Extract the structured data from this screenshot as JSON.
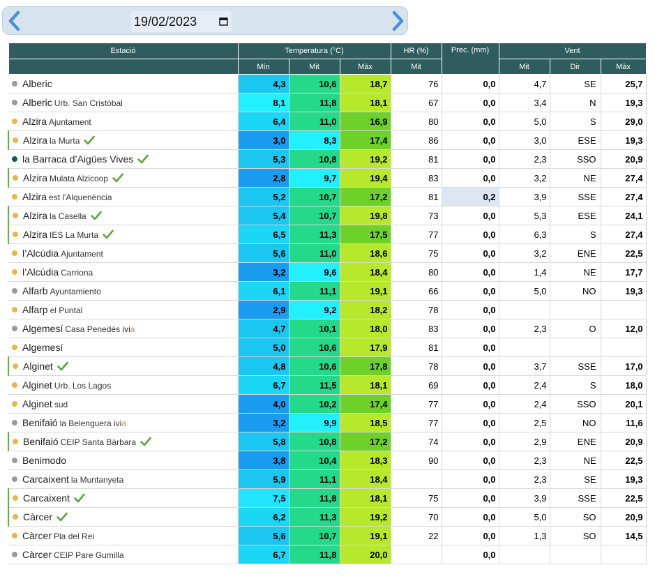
{
  "nav": {
    "date": "19/02/2023"
  },
  "headers": {
    "station": "Estació",
    "temperature": "Temperatura (°C)",
    "humidity": "HR (%)",
    "precip": "Prec. (mm)",
    "wind": "Vent",
    "t_min": "Mín",
    "t_mit": "Mit",
    "t_max": "Màx",
    "hr_mit": "Mit",
    "w_mit": "Mit",
    "w_dir": "Dir",
    "w_max": "Màx"
  },
  "rows": [
    {
      "name": "Alberic",
      "sub": "",
      "dot": "gray",
      "check": false,
      "bar": false,
      "min": "4,3",
      "mit": "10,6",
      "max": "18,7",
      "hr": "76",
      "prec": "0,0",
      "wmit": "4,7",
      "dir": "SE",
      "wmax": "25,7",
      "minc": "#1bc6f0",
      "mitc": "#25d98a",
      "maxc": "#b6e82c"
    },
    {
      "name": "Alberic",
      "sub": "Urb. San Cristóbal",
      "dot": "gray",
      "check": false,
      "bar": false,
      "min": "8,1",
      "mit": "11,8",
      "max": "18,1",
      "hr": "67",
      "prec": "0,0",
      "wmit": "3,4",
      "dir": "N",
      "wmax": "19,3",
      "minc": "#22f0ff",
      "mitc": "#25d98a",
      "maxc": "#b6e82c"
    },
    {
      "name": "Alzira",
      "sub": "Ajuntament",
      "dot": "orange",
      "check": false,
      "bar": false,
      "min": "6,4",
      "mit": "11,0",
      "max": "16,9",
      "hr": "80",
      "prec": "0,0",
      "wmit": "5,0",
      "dir": "S",
      "wmax": "29,0",
      "minc": "#1bd6f5",
      "mitc": "#25d98a",
      "maxc": "#6dd12a"
    },
    {
      "name": "Alzira",
      "sub": "la Murta",
      "dot": "orange",
      "check": true,
      "bar": true,
      "min": "3,0",
      "mit": "8,3",
      "max": "17,4",
      "hr": "86",
      "prec": "0,0",
      "wmit": "3,0",
      "dir": "ESE",
      "wmax": "19,3",
      "minc": "#1a9cf0",
      "mitc": "#22f0ff",
      "maxc": "#6dd12a"
    },
    {
      "name": "la Barraca d’Aigües Vives",
      "sub": "",
      "dot": "teal",
      "check": true,
      "bar": false,
      "min": "5,3",
      "mit": "10,8",
      "max": "19,2",
      "hr": "81",
      "prec": "0,0",
      "wmit": "2,3",
      "dir": "SSO",
      "wmax": "20,9",
      "minc": "#1bc6f0",
      "mitc": "#25d98a",
      "maxc": "#b6e82c"
    },
    {
      "name": "Alzira",
      "sub": "Mulata Alzicoop",
      "dot": "orange",
      "check": true,
      "bar": true,
      "min": "2,8",
      "mit": "9,7",
      "max": "19,4",
      "hr": "83",
      "prec": "0,0",
      "wmit": "3,2",
      "dir": "NE",
      "wmax": "27,4",
      "minc": "#1a9cf0",
      "mitc": "#22f0ff",
      "maxc": "#b6e82c"
    },
    {
      "name": "Alzira",
      "sub": "est l'Alquenència",
      "dot": "orange",
      "check": false,
      "bar": false,
      "min": "5,2",
      "mit": "10,7",
      "max": "17,2",
      "hr": "81",
      "prec": "0,2",
      "wmit": "3,9",
      "dir": "SSE",
      "wmax": "27,4",
      "minc": "#1bc6f0",
      "mitc": "#25d98a",
      "maxc": "#6dd12a",
      "hl": true
    },
    {
      "name": "Alzira",
      "sub": "la Casella",
      "dot": "orange",
      "check": true,
      "bar": true,
      "min": "5,4",
      "mit": "10,7",
      "max": "19,8",
      "hr": "73",
      "prec": "0,0",
      "wmit": "5,3",
      "dir": "ESE",
      "wmax": "24,1",
      "minc": "#1bc6f0",
      "mitc": "#25d98a",
      "maxc": "#b6e82c"
    },
    {
      "name": "Alzira",
      "sub": "IES La Murta",
      "dot": "orange",
      "check": true,
      "bar": true,
      "min": "6,5",
      "mit": "11,3",
      "max": "17,5",
      "hr": "77",
      "prec": "0,0",
      "wmit": "6,3",
      "dir": "S",
      "wmax": "27,4",
      "minc": "#1bd6f5",
      "mitc": "#25d98a",
      "maxc": "#6dd12a"
    },
    {
      "name": "l’Alcúdia",
      "sub": "Ajuntament",
      "dot": "orange",
      "check": false,
      "bar": false,
      "min": "5,6",
      "mit": "11,0",
      "max": "18,6",
      "hr": "75",
      "prec": "0,0",
      "wmit": "3,2",
      "dir": "ENE",
      "wmax": "22,5",
      "minc": "#1bc6f0",
      "mitc": "#25d98a",
      "maxc": "#b6e82c"
    },
    {
      "name": "l’Alcúdia",
      "sub": "Carriona",
      "dot": "orange",
      "check": false,
      "bar": false,
      "min": "3,2",
      "mit": "9,6",
      "max": "18,4",
      "hr": "80",
      "prec": "0,0",
      "wmit": "1,4",
      "dir": "NE",
      "wmax": "17,7",
      "minc": "#1a9cf0",
      "mitc": "#22f0ff",
      "maxc": "#b6e82c"
    },
    {
      "name": "Alfarb",
      "sub": "Ayuntamiento",
      "dot": "gray",
      "check": false,
      "bar": false,
      "min": "6,1",
      "mit": "11,1",
      "max": "19,1",
      "hr": "66",
      "prec": "0,0",
      "wmit": "5,0",
      "dir": "NO",
      "wmax": "19,3",
      "minc": "#1bd6f5",
      "mitc": "#25d98a",
      "maxc": "#b6e82c"
    },
    {
      "name": "Alfarp",
      "sub": "el Puntal",
      "dot": "orange",
      "check": false,
      "bar": false,
      "min": "2,9",
      "mit": "9,2",
      "max": "18,2",
      "hr": "78",
      "prec": "0,0",
      "wmit": "",
      "dir": "",
      "wmax": "",
      "minc": "#1a9cf0",
      "mitc": "#22f0ff",
      "maxc": "#b6e82c"
    },
    {
      "name": "Algemesí",
      "sub": "Casa Penedés",
      "dot": "gray",
      "check": false,
      "bar": false,
      "ivi": true,
      "min": "4,7",
      "mit": "10,1",
      "max": "18,0",
      "hr": "83",
      "prec": "0,0",
      "wmit": "2,3",
      "dir": "O",
      "wmax": "12,0",
      "minc": "#1bc6f0",
      "mitc": "#25d98a",
      "maxc": "#b6e82c"
    },
    {
      "name": "Algemesí",
      "sub": "",
      "dot": "orange",
      "check": false,
      "bar": false,
      "min": "5,0",
      "mit": "10,6",
      "max": "17,9",
      "hr": "81",
      "prec": "0,0",
      "wmit": "",
      "dir": "",
      "wmax": "",
      "minc": "#1bc6f0",
      "mitc": "#25d98a",
      "maxc": "#b6e82c"
    },
    {
      "name": "Alginet",
      "sub": "",
      "dot": "orange",
      "check": true,
      "bar": true,
      "min": "4,8",
      "mit": "10,6",
      "max": "17,8",
      "hr": "78",
      "prec": "0,0",
      "wmit": "3,7",
      "dir": "SSE",
      "wmax": "17,0",
      "minc": "#1bc6f0",
      "mitc": "#25d98a",
      "maxc": "#6dd12a"
    },
    {
      "name": "Alginet",
      "sub": "Urb. Los Lagos",
      "dot": "orange",
      "check": false,
      "bar": false,
      "min": "6,7",
      "mit": "11,5",
      "max": "18,1",
      "hr": "69",
      "prec": "0,0",
      "wmit": "2,4",
      "dir": "S",
      "wmax": "18,0",
      "minc": "#1bd6f5",
      "mitc": "#25d98a",
      "maxc": "#b6e82c"
    },
    {
      "name": "Alginet",
      "sub": "sud",
      "dot": "orange",
      "check": false,
      "bar": false,
      "min": "4,0",
      "mit": "10,2",
      "max": "17,4",
      "hr": "77",
      "prec": "0,0",
      "wmit": "2,4",
      "dir": "SSO",
      "wmax": "20,1",
      "minc": "#1a9cf0",
      "mitc": "#25d98a",
      "maxc": "#6dd12a"
    },
    {
      "name": "Benifaió",
      "sub": "la Belenguera",
      "dot": "gray",
      "check": false,
      "bar": false,
      "ivi": true,
      "min": "3,2",
      "mit": "9,9",
      "max": "18,5",
      "hr": "77",
      "prec": "0,0",
      "wmit": "2,5",
      "dir": "NO",
      "wmax": "11,6",
      "minc": "#1a9cf0",
      "mitc": "#22f0ff",
      "maxc": "#b6e82c"
    },
    {
      "name": "Benifaió",
      "sub": "CEIP Santa Bàrbara",
      "dot": "orange",
      "check": true,
      "bar": true,
      "min": "5,8",
      "mit": "10,8",
      "max": "17,2",
      "hr": "74",
      "prec": "0,0",
      "wmit": "2,9",
      "dir": "ENE",
      "wmax": "20,9",
      "minc": "#1bc6f0",
      "mitc": "#25d98a",
      "maxc": "#6dd12a"
    },
    {
      "name": "Benimodo",
      "sub": "",
      "dot": "gray",
      "check": false,
      "bar": false,
      "min": "3,8",
      "mit": "10,4",
      "max": "18,3",
      "hr": "90",
      "prec": "0,0",
      "wmit": "2,3",
      "dir": "NE",
      "wmax": "22,5",
      "minc": "#1a9cf0",
      "mitc": "#25d98a",
      "maxc": "#b6e82c"
    },
    {
      "name": "Carcaixent",
      "sub": "la Muntanyeta",
      "dot": "gray",
      "check": false,
      "bar": false,
      "min": "5,9",
      "mit": "11,1",
      "max": "18,4",
      "hr": "",
      "prec": "0,0",
      "wmit": "2,3",
      "dir": "SE",
      "wmax": "19,3",
      "minc": "#1bc6f0",
      "mitc": "#25d98a",
      "maxc": "#b6e82c"
    },
    {
      "name": "Carcaixent",
      "sub": "",
      "dot": "orange",
      "check": true,
      "bar": true,
      "min": "7,5",
      "mit": "11,8",
      "max": "18,1",
      "hr": "75",
      "prec": "0,0",
      "wmit": "3,9",
      "dir": "SSE",
      "wmax": "22,5",
      "minc": "#22e4ff",
      "mitc": "#25d98a",
      "maxc": "#b6e82c"
    },
    {
      "name": "Càrcer",
      "sub": "",
      "dot": "orange",
      "check": true,
      "bar": true,
      "min": "6,2",
      "mit": "11,3",
      "max": "19,2",
      "hr": "70",
      "prec": "0,0",
      "wmit": "5,0",
      "dir": "SO",
      "wmax": "20,9",
      "minc": "#1bd6f5",
      "mitc": "#25d98a",
      "maxc": "#b6e82c"
    },
    {
      "name": "Càrcer",
      "sub": "Pla del Rei",
      "dot": "orange",
      "check": false,
      "bar": false,
      "min": "5,6",
      "mit": "10,7",
      "max": "19,1",
      "hr": "22",
      "prec": "0,0",
      "wmit": "1,3",
      "dir": "SO",
      "wmax": "14,5",
      "minc": "#1bc6f0",
      "mitc": "#25d98a",
      "maxc": "#b6e82c"
    },
    {
      "name": "Càrcer",
      "sub": "CEIP Pare Gumilla",
      "dot": "gray",
      "check": false,
      "bar": false,
      "min": "6,7",
      "mit": "11,8",
      "max": "20,0",
      "hr": "",
      "prec": "0,0",
      "wmit": "",
      "dir": "",
      "wmax": "",
      "minc": "#1bd6f5",
      "mitc": "#25d98a",
      "maxc": "#b6e82c"
    }
  ],
  "ivi_label": {
    "pre": "ivi",
    "post": "a"
  }
}
